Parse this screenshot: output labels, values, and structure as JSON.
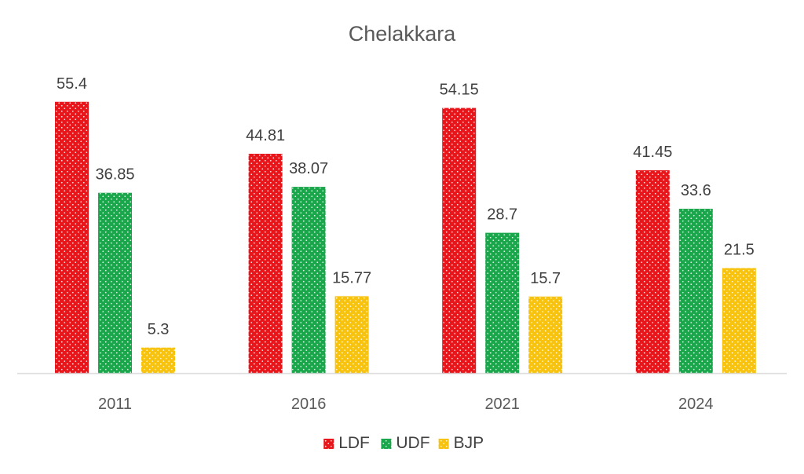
{
  "chart_data": {
    "type": "bar",
    "title": "Chelakkara",
    "categories": [
      "2011",
      "2016",
      "2021",
      "2024"
    ],
    "series": [
      {
        "name": "LDF",
        "color": "#e8161b",
        "values": [
          55.4,
          44.81,
          54.15,
          41.45
        ]
      },
      {
        "name": "UDF",
        "color": "#1aa64a",
        "values": [
          36.85,
          38.07,
          28.7,
          33.6
        ]
      },
      {
        "name": "BJP",
        "color": "#f7c30f",
        "values": [
          5.3,
          15.77,
          15.7,
          21.5
        ]
      }
    ],
    "xlabel": "",
    "ylabel": "",
    "ylim": [
      0,
      60
    ],
    "grid": false,
    "legend": "bottom-center",
    "bar_pattern": "dotted"
  }
}
